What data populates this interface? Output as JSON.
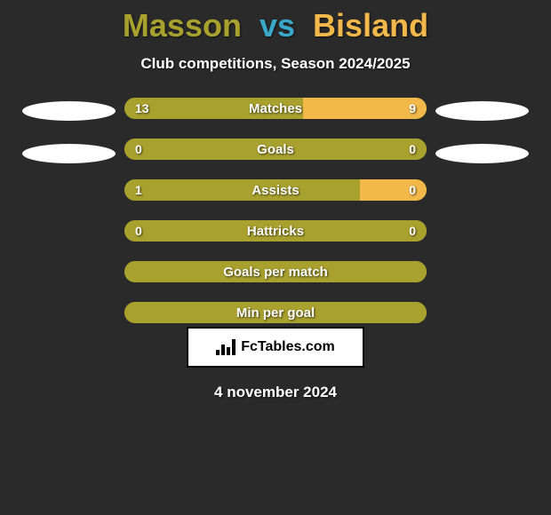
{
  "background_color": "#2a2a2a",
  "title": {
    "left": "Masson",
    "vs": "vs",
    "right": "Bisland",
    "left_color": "#a9a12e",
    "vs_color": "#3aa8c9",
    "right_color": "#f2b84a"
  },
  "subtitle": "Club competitions, Season 2024/2025",
  "left_color": "#a9a12e",
  "right_color": "#f2b84a",
  "stats": [
    {
      "label": "Matches",
      "left_value": "13",
      "right_value": "9",
      "left_width_pct": 59,
      "right_width_pct": 41
    },
    {
      "label": "Goals",
      "left_value": "0",
      "right_value": "0",
      "left_width_pct": 100,
      "right_width_pct": 0
    },
    {
      "label": "Assists",
      "left_value": "1",
      "right_value": "0",
      "left_width_pct": 78,
      "right_width_pct": 22
    },
    {
      "label": "Hattricks",
      "left_value": "0",
      "right_value": "0",
      "left_width_pct": 100,
      "right_width_pct": 0
    },
    {
      "label": "Goals per match",
      "left_value": "",
      "right_value": "",
      "left_width_pct": 100,
      "right_width_pct": 0
    },
    {
      "label": "Min per goal",
      "left_value": "",
      "right_value": "",
      "left_width_pct": 100,
      "right_width_pct": 0
    }
  ],
  "side_ellipses": {
    "left_count": 2,
    "right_count": 2,
    "color": "#ffffff"
  },
  "badge": {
    "text": "FcTables.com"
  },
  "date": "4 november 2024"
}
